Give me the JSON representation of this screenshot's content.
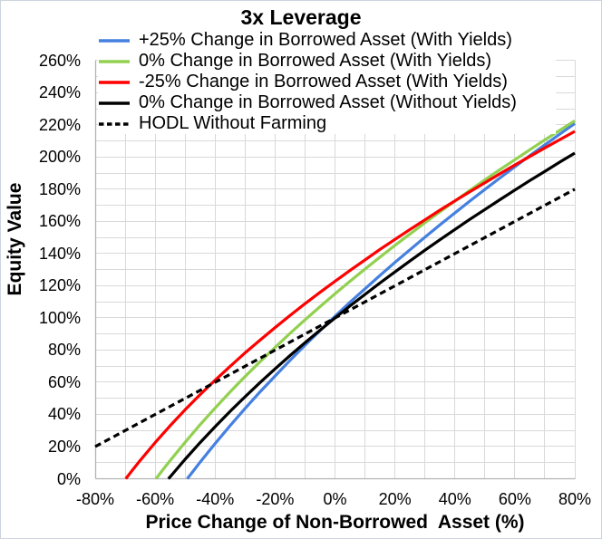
{
  "chart_data": {
    "type": "line",
    "title": "3x Leverage",
    "xlabel": "Price Change of Non-Borrowed  Asset (%)",
    "ylabel": "Equity Value",
    "xlim": [
      -80,
      80
    ],
    "ylim": [
      0,
      260
    ],
    "x_gridline_step_pct": 10,
    "y_gridline_step_pct": 10,
    "grid_on": true,
    "grid_color": "#d9d9d9",
    "axis_color": "#b3b3b3",
    "legend_position": "top-left-column",
    "x_ticks": [
      {
        "value": -80,
        "label": "-80%"
      },
      {
        "value": -60,
        "label": "-60%"
      },
      {
        "value": -40,
        "label": "-40%"
      },
      {
        "value": -20,
        "label": "-20%"
      },
      {
        "value": 0,
        "label": "0%"
      },
      {
        "value": 20,
        "label": "20%"
      },
      {
        "value": 40,
        "label": "40%"
      },
      {
        "value": 60,
        "label": "60%"
      },
      {
        "value": 80,
        "label": "80%"
      }
    ],
    "y_ticks": [
      {
        "value": 0,
        "label": "0%"
      },
      {
        "value": 20,
        "label": "20%"
      },
      {
        "value": 40,
        "label": "40%"
      },
      {
        "value": 60,
        "label": "60%"
      },
      {
        "value": 80,
        "label": "80%"
      },
      {
        "value": 100,
        "label": "100%"
      },
      {
        "value": 120,
        "label": "120%"
      },
      {
        "value": 140,
        "label": "140%"
      },
      {
        "value": 160,
        "label": "160%"
      },
      {
        "value": 180,
        "label": "180%"
      },
      {
        "value": 200,
        "label": "200%"
      },
      {
        "value": 220,
        "label": "220%"
      },
      {
        "value": 240,
        "label": "240%"
      },
      {
        "value": 260,
        "label": "260%"
      }
    ],
    "series": [
      {
        "key": "plus25-borrowed-with-yields",
        "name": "+25% Change in Borrowed Asset (With Yields)",
        "color": "#4580e0",
        "dash": "solid",
        "points": [
          [
            -49.3,
            0
          ],
          [
            -47.5,
            4.3
          ],
          [
            -45,
            10.3
          ],
          [
            -40,
            21.9
          ],
          [
            -35,
            33.0
          ],
          [
            -30,
            43.7
          ],
          [
            -25,
            54.0
          ],
          [
            -20,
            63.9
          ],
          [
            -15,
            73.6
          ],
          [
            -10,
            83.0
          ],
          [
            -5,
            92.1
          ],
          [
            0,
            101.0
          ],
          [
            5,
            109.7
          ],
          [
            10,
            118.1
          ],
          [
            15,
            126.4
          ],
          [
            20,
            134.5
          ],
          [
            25,
            142.4
          ],
          [
            30,
            150.2
          ],
          [
            35,
            157.8
          ],
          [
            40,
            165.3
          ],
          [
            45,
            172.7
          ],
          [
            50,
            179.9
          ],
          [
            55,
            187.0
          ],
          [
            60,
            194.0
          ],
          [
            65,
            200.9
          ],
          [
            70,
            207.6
          ],
          [
            75,
            214.3
          ],
          [
            80,
            220.9
          ]
        ]
      },
      {
        "key": "zero-borrowed-with-yields",
        "name": "0% Change in Borrowed Asset (With Yields)",
        "color": "#92d050",
        "dash": "solid",
        "points": [
          [
            -59.7,
            0
          ],
          [
            -57.5,
            5.4
          ],
          [
            -55,
            11.3
          ],
          [
            -50,
            22.7
          ],
          [
            -45,
            33.6
          ],
          [
            -40,
            44.0
          ],
          [
            -35,
            54.0
          ],
          [
            -30,
            63.6
          ],
          [
            -25,
            72.8
          ],
          [
            -20,
            81.7
          ],
          [
            -15,
            90.4
          ],
          [
            -10,
            98.8
          ],
          [
            -5,
            107.0
          ],
          [
            0,
            115.0
          ],
          [
            5,
            122.8
          ],
          [
            10,
            130.4
          ],
          [
            15,
            137.8
          ],
          [
            20,
            145.1
          ],
          [
            25,
            152.2
          ],
          [
            30,
            159.2
          ],
          [
            35,
            166.0
          ],
          [
            40,
            172.7
          ],
          [
            45,
            179.3
          ],
          [
            50,
            185.8
          ],
          [
            55,
            192.2
          ],
          [
            60,
            198.4
          ],
          [
            65,
            204.6
          ],
          [
            70,
            210.7
          ],
          [
            75,
            216.7
          ],
          [
            80,
            222.6
          ]
        ]
      },
      {
        "key": "minus25-borrowed-with-yields",
        "name": "-25% Change in Borrowed Asset (With Yields)",
        "color": "#ff0000",
        "dash": "solid",
        "points": [
          [
            -69.8,
            0
          ],
          [
            -67.5,
            5.5
          ],
          [
            -65,
            11.4
          ],
          [
            -60,
            22.5
          ],
          [
            -55,
            33.0
          ],
          [
            -50,
            42.9
          ],
          [
            -45,
            52.3
          ],
          [
            -40,
            61.3
          ],
          [
            -35,
            69.9
          ],
          [
            -30,
            78.3
          ],
          [
            -25,
            86.2
          ],
          [
            -20,
            94.0
          ],
          [
            -15,
            101.5
          ],
          [
            -10,
            108.8
          ],
          [
            -5,
            115.9
          ],
          [
            0,
            122.8
          ],
          [
            5,
            129.5
          ],
          [
            10,
            136.1
          ],
          [
            15,
            142.6
          ],
          [
            20,
            148.8
          ],
          [
            25,
            155.0
          ],
          [
            30,
            161.0
          ],
          [
            35,
            167.0
          ],
          [
            40,
            172.8
          ],
          [
            45,
            178.5
          ],
          [
            50,
            184.1
          ],
          [
            55,
            189.6
          ],
          [
            60,
            195.1
          ],
          [
            65,
            200.4
          ],
          [
            70,
            205.7
          ],
          [
            75,
            210.9
          ],
          [
            80,
            216.0
          ]
        ]
      },
      {
        "key": "zero-borrowed-without-yields",
        "name": "0% Change in Borrowed Asset (Without Yields)",
        "color": "#000000",
        "dash": "solid",
        "points": [
          [
            -55.6,
            0
          ],
          [
            -55,
            1.2
          ],
          [
            -50,
            12.1
          ],
          [
            -45,
            22.5
          ],
          [
            -40,
            32.4
          ],
          [
            -35,
            41.9
          ],
          [
            -30,
            51.0
          ],
          [
            -25,
            59.8
          ],
          [
            -20,
            68.3
          ],
          [
            -15,
            76.6
          ],
          [
            -10,
            84.6
          ],
          [
            -5,
            92.4
          ],
          [
            0,
            100.0
          ],
          [
            5,
            107.4
          ],
          [
            10,
            114.6
          ],
          [
            15,
            121.7
          ],
          [
            20,
            128.6
          ],
          [
            25,
            135.4
          ],
          [
            30,
            142.1
          ],
          [
            35,
            148.6
          ],
          [
            40,
            155.0
          ],
          [
            45,
            161.3
          ],
          [
            50,
            167.4
          ],
          [
            55,
            173.5
          ],
          [
            60,
            179.5
          ],
          [
            65,
            185.4
          ],
          [
            70,
            191.1
          ],
          [
            75,
            196.9
          ],
          [
            80,
            202.5
          ]
        ]
      },
      {
        "key": "hodl-without-farming",
        "name": "HODL Without Farming",
        "color": "#000000",
        "dash": "dashed",
        "points": [
          [
            -80,
            20
          ],
          [
            -60,
            40
          ],
          [
            -40,
            60
          ],
          [
            -20,
            80
          ],
          [
            0,
            100
          ],
          [
            20,
            120
          ],
          [
            40,
            140
          ],
          [
            60,
            160
          ],
          [
            80,
            180
          ]
        ]
      }
    ]
  }
}
